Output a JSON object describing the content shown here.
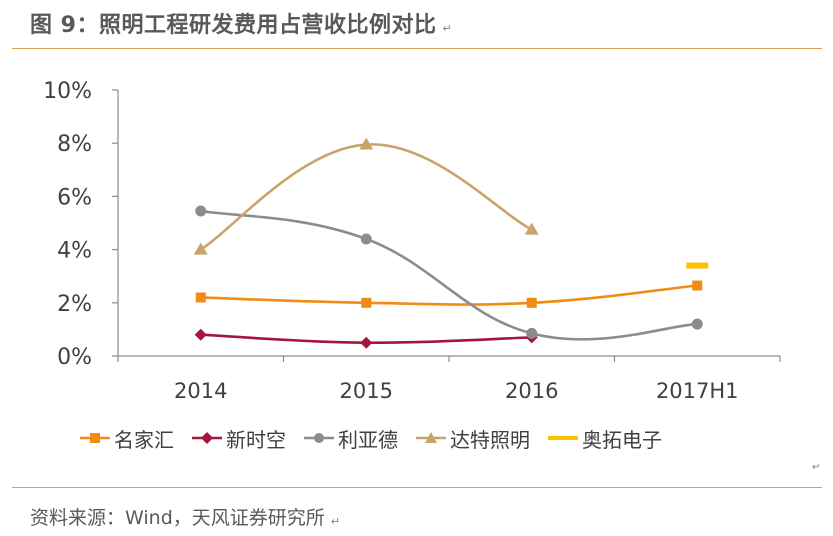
{
  "header": {
    "title": "图 9：照明工程研发费用占营收比例对比",
    "para_mark": "↵"
  },
  "chart_data": {
    "type": "line",
    "title": "图 9：照明工程研发费用占营收比例对比",
    "categories": [
      "2014",
      "2015",
      "2016",
      "2017H1"
    ],
    "y_ticks": [
      "0%",
      "2%",
      "4%",
      "6%",
      "8%",
      "10%"
    ],
    "ylim": [
      0,
      10
    ],
    "y_unit": "%",
    "grid": false,
    "legend_position": "bottom",
    "series": [
      {
        "name": "名家汇",
        "color": "#f08c14",
        "marker": "square",
        "values": [
          2.2,
          2.0,
          2.0,
          2.65
        ]
      },
      {
        "name": "新时空",
        "color": "#a3173b",
        "marker": "diamond",
        "values": [
          0.8,
          0.5,
          0.7,
          null
        ]
      },
      {
        "name": "利亚德",
        "color": "#8c8c8c",
        "marker": "circle",
        "values": [
          5.45,
          4.4,
          0.85,
          1.2
        ]
      },
      {
        "name": "达特照明",
        "color": "#c9a46a",
        "marker": "triangle",
        "values": [
          4.0,
          7.95,
          4.75,
          null
        ]
      },
      {
        "name": "奥拓电子",
        "color": "#ffc000",
        "marker": "dash",
        "values": [
          null,
          null,
          null,
          3.4
        ]
      }
    ]
  },
  "legend_para_mark": "↵",
  "footer": {
    "source": "资料来源：Wind，天风证券研究所",
    "para_mark": "↵"
  }
}
